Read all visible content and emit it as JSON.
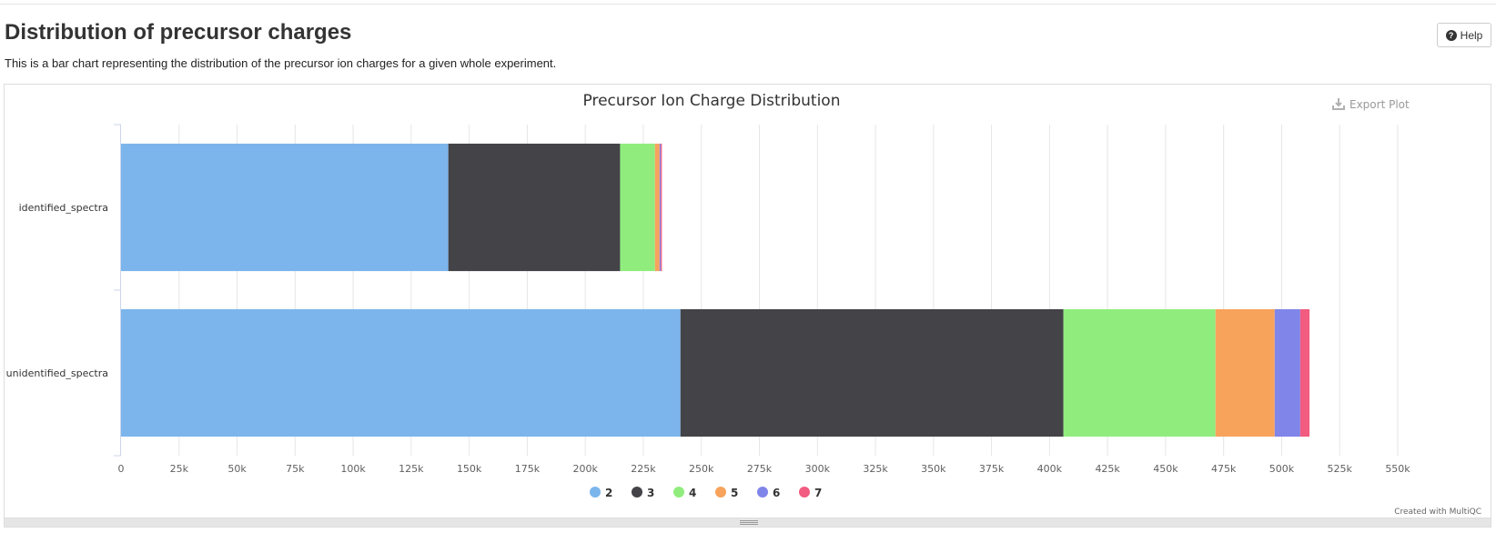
{
  "section": {
    "title": "Distribution of precursor charges",
    "description": "This is a bar chart representing the distribution of the precursor ion charges for a given whole experiment.",
    "help_label": "Help",
    "help_icon": "question-circle-icon"
  },
  "plot": {
    "export_label": "Export Plot",
    "export_icon": "download-icon",
    "credit": "Created with MultiQC"
  },
  "chart_data": {
    "type": "bar",
    "orientation": "horizontal",
    "stacked": true,
    "title": "Precursor Ion Charge Distribution",
    "xlabel": "",
    "ylabel": "",
    "categories": [
      "identified_spectra",
      "unidentified_spectra"
    ],
    "series": [
      {
        "name": "2",
        "color": "#7cb5ec",
        "values": [
          141000,
          241000
        ]
      },
      {
        "name": "3",
        "color": "#434348",
        "values": [
          74000,
          165000
        ]
      },
      {
        "name": "4",
        "color": "#90ed7d",
        "values": [
          15000,
          65500
        ]
      },
      {
        "name": "5",
        "color": "#f7a35c",
        "values": [
          2000,
          25500
        ]
      },
      {
        "name": "6",
        "color": "#8085e9",
        "values": [
          500,
          11000
        ]
      },
      {
        "name": "7",
        "color": "#f15c80",
        "values": [
          500,
          4000
        ]
      }
    ],
    "xlim": [
      0,
      550000
    ],
    "xticks": [
      0,
      25000,
      50000,
      75000,
      100000,
      125000,
      150000,
      175000,
      200000,
      225000,
      250000,
      275000,
      300000,
      325000,
      350000,
      375000,
      400000,
      425000,
      450000,
      475000,
      500000,
      525000,
      550000
    ],
    "xtick_labels": [
      "0",
      "25k",
      "50k",
      "75k",
      "100k",
      "125k",
      "150k",
      "175k",
      "200k",
      "225k",
      "250k",
      "275k",
      "300k",
      "325k",
      "350k",
      "375k",
      "400k",
      "425k",
      "450k",
      "475k",
      "500k",
      "525k",
      "550k"
    ],
    "grid": true,
    "legend_position": "bottom-center"
  }
}
